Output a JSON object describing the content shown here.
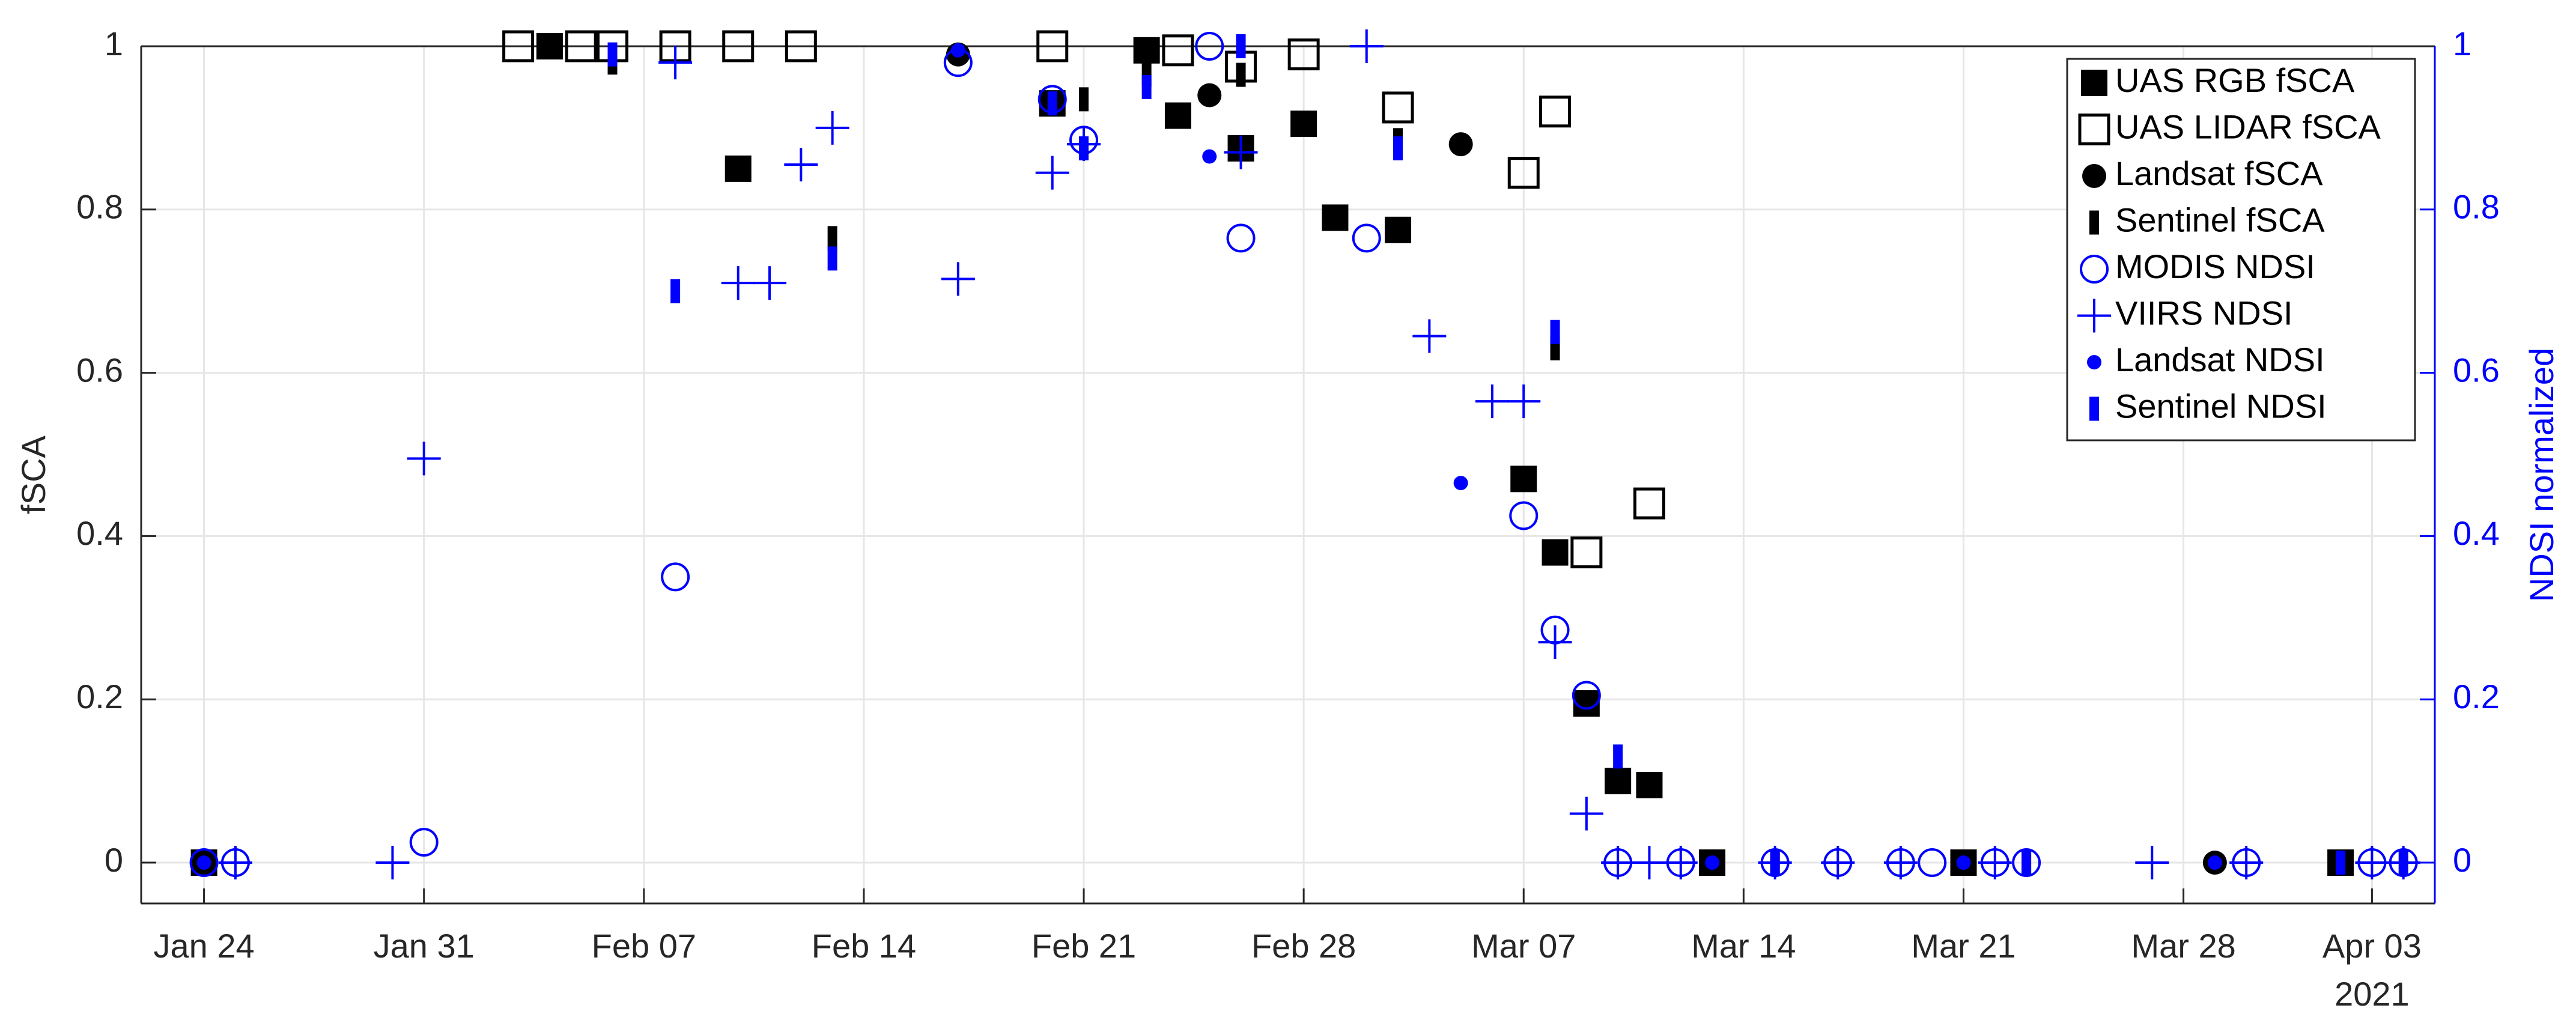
{
  "chart_data": {
    "type": "scatter",
    "xlabel": null,
    "ylabel": "fSCA",
    "y2label": "NDSI normalized",
    "x_year_label": "2021",
    "xlim": [
      "2021-01-22",
      "2021-04-05"
    ],
    "xticks": [
      {
        "value": "2021-01-24",
        "label": "Jan 24"
      },
      {
        "value": "2021-01-31",
        "label": "Jan 31"
      },
      {
        "value": "2021-02-07",
        "label": "Feb 07"
      },
      {
        "value": "2021-02-14",
        "label": "Feb 14"
      },
      {
        "value": "2021-02-21",
        "label": "Feb 21"
      },
      {
        "value": "2021-02-28",
        "label": "Feb 28"
      },
      {
        "value": "2021-03-07",
        "label": "Mar 07"
      },
      {
        "value": "2021-03-14",
        "label": "Mar 14"
      },
      {
        "value": "2021-03-21",
        "label": "Mar 21"
      },
      {
        "value": "2021-03-28",
        "label": "Mar 28"
      },
      {
        "value": "2021-04-03",
        "label": "Apr 03"
      }
    ],
    "ylim": [
      -0.05,
      1
    ],
    "yticks": [
      0,
      0.2,
      0.4,
      0.6,
      0.8,
      1
    ],
    "y2lim": [
      -0.05,
      1
    ],
    "y2ticks": [
      0,
      0.2,
      0.4,
      0.6,
      0.8,
      1
    ],
    "y2color": "#0000ff",
    "grid": true,
    "legend": "upper right",
    "series": [
      {
        "name": "UAS RGB fSCA",
        "color": "#000000",
        "marker": "square-filled",
        "x": [
          "2021-01-24",
          "2021-02-04",
          "2021-02-10",
          "2021-02-20",
          "2021-02-23",
          "2021-02-24",
          "2021-02-26",
          "2021-02-28",
          "2021-03-01",
          "2021-03-03",
          "2021-03-07",
          "2021-03-08",
          "2021-03-09",
          "2021-03-10",
          "2021-03-11",
          "2021-03-13",
          "2021-03-21",
          "2021-04-02"
        ],
        "values": [
          0,
          1,
          0.85,
          0.93,
          0.995,
          0.915,
          0.875,
          0.905,
          0.79,
          0.775,
          0.47,
          0.38,
          0.195,
          0.1,
          0.095,
          0,
          0,
          0
        ]
      },
      {
        "name": "UAS LIDAR fSCA",
        "color": "#000000",
        "marker": "square-open",
        "x": [
          "2021-02-03",
          "2021-02-05",
          "2021-02-06",
          "2021-02-08",
          "2021-02-10",
          "2021-02-12",
          "2021-02-20",
          "2021-02-24",
          "2021-02-26",
          "2021-02-28",
          "2021-03-03",
          "2021-03-07",
          "2021-03-08",
          "2021-03-09",
          "2021-03-11"
        ],
        "values": [
          1,
          1,
          1,
          1,
          1,
          1,
          1,
          0.995,
          0.975,
          0.99,
          0.925,
          0.845,
          0.92,
          0.38,
          0.44
        ]
      },
      {
        "name": "Landsat fSCA",
        "color": "#000000",
        "marker": "circle-filled",
        "x": [
          "2021-01-24",
          "2021-02-17",
          "2021-02-25",
          "2021-03-05",
          "2021-03-13",
          "2021-03-21",
          "2021-03-29"
        ],
        "values": [
          0,
          0.99,
          0.94,
          0.88,
          0,
          0,
          0
        ]
      },
      {
        "name": "Sentinel fSCA",
        "color": "#000000",
        "marker": "bar",
        "x": [
          "2021-02-06",
          "2021-02-13",
          "2021-02-21",
          "2021-02-23",
          "2021-02-26",
          "2021-03-03",
          "2021-03-08",
          "2021-03-10",
          "2021-03-15",
          "2021-03-23",
          "2021-04-02"
        ],
        "values": [
          0.98,
          0.765,
          0.935,
          0.965,
          0.965,
          0.885,
          0.63,
          0.1,
          0,
          0,
          0
        ]
      },
      {
        "name": "MODIS NDSI",
        "color": "#0000ff",
        "marker": "circle-open",
        "axis": "y2",
        "x": [
          "2021-01-24",
          "2021-01-25",
          "2021-01-31",
          "2021-02-08",
          "2021-02-17",
          "2021-02-20",
          "2021-02-21",
          "2021-02-25",
          "2021-02-26",
          "2021-03-02",
          "2021-03-07",
          "2021-03-08",
          "2021-03-09",
          "2021-03-10",
          "2021-03-12",
          "2021-03-15",
          "2021-03-17",
          "2021-03-19",
          "2021-03-20",
          "2021-03-22",
          "2021-03-23",
          "2021-03-30",
          "2021-04-03",
          "2021-04-04"
        ],
        "values": [
          0,
          0,
          0.025,
          0.35,
          0.98,
          0.935,
          0.885,
          1,
          0.765,
          0.765,
          0.425,
          0.285,
          0.205,
          0,
          0,
          0,
          0,
          0,
          0,
          0,
          0,
          0,
          0,
          0
        ]
      },
      {
        "name": "VIIRS NDSI",
        "color": "#0000ff",
        "marker": "plus",
        "axis": "y2",
        "x": [
          "2021-01-25",
          "2021-01-30",
          "2021-01-31",
          "2021-02-08",
          "2021-02-10",
          "2021-02-11",
          "2021-02-12",
          "2021-02-13",
          "2021-02-17",
          "2021-02-20",
          "2021-02-21",
          "2021-02-26",
          "2021-03-02",
          "2021-03-04",
          "2021-03-06",
          "2021-03-07",
          "2021-03-08",
          "2021-03-09",
          "2021-03-10",
          "2021-03-11",
          "2021-03-12",
          "2021-03-15",
          "2021-03-17",
          "2021-03-19",
          "2021-03-22",
          "2021-03-27",
          "2021-03-30",
          "2021-04-03",
          "2021-04-04"
        ],
        "values": [
          0,
          0,
          0.495,
          0.98,
          0.71,
          0.71,
          0.855,
          0.9,
          0.715,
          0.845,
          0.88,
          0.87,
          1,
          0.645,
          0.565,
          0.565,
          0.27,
          0.06,
          0,
          0,
          0,
          0,
          0,
          0,
          0,
          0,
          0,
          0,
          0
        ]
      },
      {
        "name": "Landsat NDSI",
        "color": "#0000ff",
        "marker": "dot",
        "axis": "y2",
        "x": [
          "2021-01-24",
          "2021-02-17",
          "2021-02-25",
          "2021-03-05",
          "2021-03-13",
          "2021-03-21",
          "2021-03-29"
        ],
        "values": [
          0,
          0.995,
          0.865,
          0.465,
          0,
          0,
          0
        ]
      },
      {
        "name": "Sentinel NDSI",
        "color": "#0000ff",
        "marker": "bar",
        "axis": "y2",
        "x": [
          "2021-02-06",
          "2021-02-08",
          "2021-02-13",
          "2021-02-20",
          "2021-02-21",
          "2021-02-23",
          "2021-02-26",
          "2021-03-03",
          "2021-03-08",
          "2021-03-10",
          "2021-03-15",
          "2021-03-23",
          "2021-04-02",
          "2021-04-04"
        ],
        "values": [
          0.99,
          0.7,
          0.74,
          0.93,
          0.875,
          0.95,
          1,
          0.875,
          0.65,
          0.13,
          0,
          0,
          0,
          0
        ]
      }
    ]
  }
}
